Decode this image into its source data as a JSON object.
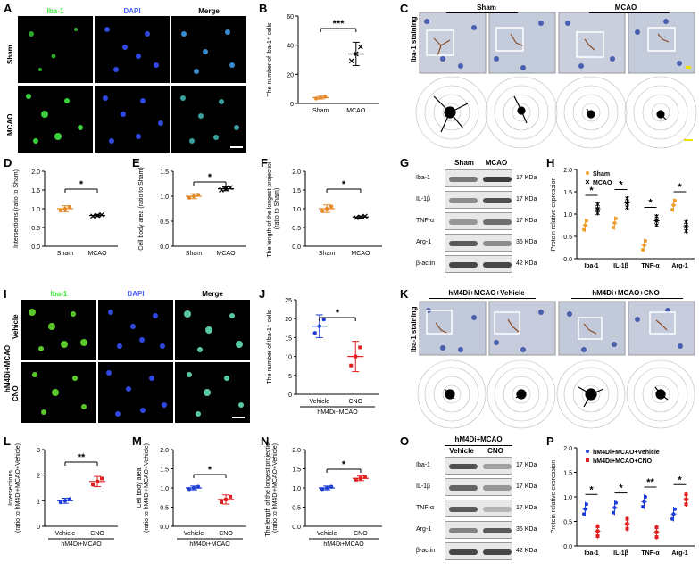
{
  "colors": {
    "iba1": "#39e639",
    "dapi": "#4a62ff",
    "sham": "#f0a030",
    "mcao": "#000000",
    "vehicle": "#1d3fd6",
    "cno": "#e02020"
  },
  "panels": [
    "A",
    "B",
    "C",
    "D",
    "E",
    "F",
    "G",
    "H",
    "I",
    "J",
    "K",
    "L",
    "M",
    "N",
    "O",
    "P"
  ],
  "A": {
    "cols": [
      "Iba-1",
      "DAPI",
      "Merge"
    ],
    "rows": [
      "Sham",
      "MCAO"
    ]
  },
  "B": {
    "ylabel": "The number of Iba-1⁺ cells",
    "x": [
      "Sham",
      "MCAO"
    ],
    "sig": "***",
    "yticks": [
      "0",
      "20",
      "40",
      "60"
    ],
    "values": [
      4,
      34
    ]
  },
  "C": {
    "groups": [
      "Sham",
      "MCAO"
    ],
    "side": "Iba-1 staining"
  },
  "D": {
    "ylabel": "Intersections (ratio to Sham)",
    "x": [
      "Sham",
      "MCAO"
    ],
    "sig": "*",
    "yticks": [
      "0.0",
      "0.5",
      "1.0",
      "1.5",
      "2.0"
    ],
    "values": [
      1.0,
      0.82
    ]
  },
  "E": {
    "ylabel": "Cell body area (ratio to Sham)",
    "x": [
      "Sham",
      "MCAO"
    ],
    "sig": "*",
    "yticks": [
      "0.0",
      "0.5",
      "1.0",
      "1.5"
    ],
    "values": [
      1.0,
      1.15
    ]
  },
  "F": {
    "ylabel": "The length of the longest projection (ratio to Sham)",
    "x": [
      "Sham",
      "MCAO"
    ],
    "sig": "*",
    "yticks": [
      "0.0",
      "0.5",
      "1.0",
      "1.5",
      "2.0"
    ],
    "values": [
      1.0,
      0.78
    ]
  },
  "G": {
    "cols": [
      "Sham",
      "MCAO"
    ],
    "bands": [
      "Iba-1",
      "IL-1β",
      "TNF-α",
      "Arg-1",
      "β-actin"
    ],
    "kda": [
      "17 KDa",
      "17 KDa",
      "17 KDa",
      "35 KDa",
      "42 KDa"
    ]
  },
  "H": {
    "ylabel": "Protein relative expression",
    "legend": [
      "Sham",
      "MCAO"
    ],
    "x": [
      "Iba-1",
      "IL-1β",
      "TNF-α",
      "Arg-1"
    ],
    "sig": [
      "*",
      "*",
      "*",
      "*"
    ],
    "yticks": [
      "0.0",
      "0.5",
      "1.0",
      "1.5",
      "2.0"
    ],
    "sham": [
      0.75,
      0.8,
      0.3,
      1.2
    ],
    "mcao": [
      1.12,
      1.25,
      0.85,
      0.72
    ]
  },
  "I": {
    "cols": [
      "Iba-1",
      "DAPI",
      "Merge"
    ],
    "rows": [
      "Vehicle",
      "CNO"
    ],
    "group": "hM4Di+MCAO"
  },
  "J": {
    "ylabel": "The number of Iba-1⁺ cells",
    "x": [
      "Vehicle",
      "CNO"
    ],
    "group": "hM4Di+MCAO",
    "sig": "*",
    "yticks": [
      "0",
      "5",
      "10",
      "15",
      "20",
      "25"
    ],
    "values": [
      18,
      10
    ]
  },
  "K": {
    "groups": [
      "hM4Di+MCAO+Vehicle",
      "hM4Di+MCAO+CNO"
    ],
    "side": "Iba-1 staining"
  },
  "L": {
    "ylabel": "Intersections (ratio to hM4Di+MCAO+Vehicle)",
    "x": [
      "Vehicle",
      "CNO"
    ],
    "group": "hM4Di+MCAO",
    "sig": "**",
    "yticks": [
      "0",
      "1",
      "2",
      "3"
    ],
    "values": [
      1.0,
      1.75
    ]
  },
  "M": {
    "ylabel": "Cell body area (ratio to hM4Di+MCAO+Vehicle)",
    "x": [
      "Vehicle",
      "CNO"
    ],
    "group": "hM4Di+MCAO",
    "sig": "*",
    "yticks": [
      "0.0",
      "0.5",
      "1.0",
      "1.5",
      "2.0"
    ],
    "values": [
      1.0,
      0.7
    ]
  },
  "N": {
    "ylabel": "The length of the longest projection (ratio to hM4Di+MCAO+Vehicle)",
    "x": [
      "Vehicle",
      "CNO"
    ],
    "group": "hM4Di+MCAO",
    "sig": "*",
    "yticks": [
      "0.0",
      "0.5",
      "1.0",
      "1.5",
      "2.0"
    ],
    "values": [
      1.0,
      1.25
    ]
  },
  "O": {
    "group": "hM4Di+MCAO",
    "cols": [
      "Vehicle",
      "CNO"
    ],
    "bands": [
      "Iba-1",
      "IL-1β",
      "TNF-α",
      "Arg-1",
      "β-actin"
    ],
    "kda": [
      "17 KDa",
      "17 KDa",
      "17 KDa",
      "35 KDa",
      "42 KDa"
    ]
  },
  "P": {
    "ylabel": "Protein relative expression",
    "legend": [
      "hM4Di+MCAO+Vehicle",
      "hM4Di+MCAO+CNO"
    ],
    "x": [
      "Iba-1",
      "IL-1β",
      "TNF-α",
      "Arg-1"
    ],
    "sig": [
      "*",
      "*",
      "**",
      "*"
    ],
    "yticks": [
      "0.0",
      "0.5",
      "1.0",
      "1.5",
      "2.0"
    ],
    "vehicle": [
      0.75,
      0.78,
      0.9,
      0.65
    ],
    "cno": [
      0.3,
      0.45,
      0.28,
      0.95
    ]
  },
  "chart_data": [
    {
      "panel": "B",
      "type": "scatter",
      "categories": [
        "Sham",
        "MCAO"
      ],
      "values": [
        4,
        34
      ],
      "ylabel": "The number of Iba-1⁺ cells",
      "ylim": [
        0,
        60
      ]
    },
    {
      "panel": "D",
      "type": "scatter",
      "categories": [
        "Sham",
        "MCAO"
      ],
      "values": [
        1.0,
        0.82
      ],
      "ylabel": "Intersections (ratio to Sham)",
      "ylim": [
        0,
        2
      ]
    },
    {
      "panel": "E",
      "type": "scatter",
      "categories": [
        "Sham",
        "MCAO"
      ],
      "values": [
        1.0,
        1.15
      ],
      "ylabel": "Cell body area (ratio to Sham)",
      "ylim": [
        0,
        1.5
      ]
    },
    {
      "panel": "F",
      "type": "scatter",
      "categories": [
        "Sham",
        "MCAO"
      ],
      "values": [
        1.0,
        0.78
      ],
      "ylabel": "The length of the longest projection (ratio to Sham)",
      "ylim": [
        0,
        2
      ]
    },
    {
      "panel": "H",
      "type": "scatter",
      "categories": [
        "Iba-1",
        "IL-1β",
        "TNF-α",
        "Arg-1"
      ],
      "series": [
        {
          "name": "Sham",
          "values": [
            0.75,
            0.8,
            0.3,
            1.2
          ]
        },
        {
          "name": "MCAO",
          "values": [
            1.12,
            1.25,
            0.85,
            0.72
          ]
        }
      ],
      "ylabel": "Protein relative expression",
      "ylim": [
        0,
        2
      ]
    },
    {
      "panel": "J",
      "type": "scatter",
      "categories": [
        "Vehicle",
        "CNO"
      ],
      "values": [
        18,
        10
      ],
      "ylabel": "The number of Iba-1⁺ cells",
      "ylim": [
        0,
        25
      ]
    },
    {
      "panel": "L",
      "type": "scatter",
      "categories": [
        "Vehicle",
        "CNO"
      ],
      "values": [
        1.0,
        1.75
      ],
      "ylim": [
        0,
        3
      ]
    },
    {
      "panel": "M",
      "type": "scatter",
      "categories": [
        "Vehicle",
        "CNO"
      ],
      "values": [
        1.0,
        0.7
      ],
      "ylim": [
        0,
        2
      ]
    },
    {
      "panel": "N",
      "type": "scatter",
      "categories": [
        "Vehicle",
        "CNO"
      ],
      "values": [
        1.0,
        1.25
      ],
      "ylim": [
        0,
        2
      ]
    },
    {
      "panel": "P",
      "type": "scatter",
      "categories": [
        "Iba-1",
        "IL-1β",
        "TNF-α",
        "Arg-1"
      ],
      "series": [
        {
          "name": "hM4Di+MCAO+Vehicle",
          "values": [
            0.75,
            0.78,
            0.9,
            0.65
          ]
        },
        {
          "name": "hM4Di+MCAO+CNO",
          "values": [
            0.3,
            0.45,
            0.28,
            0.95
          ]
        }
      ],
      "ylabel": "Protein relative expression",
      "ylim": [
        0,
        2
      ]
    }
  ]
}
